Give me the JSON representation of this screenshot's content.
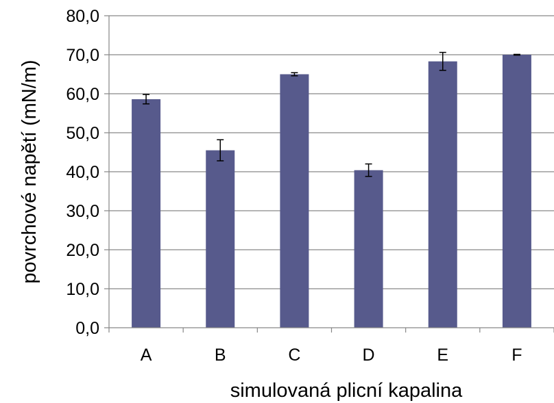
{
  "chart_data": {
    "type": "bar",
    "title": "",
    "xlabel": "simulovaná plicní kapalina",
    "ylabel": "povrchové napětí (mN/m)",
    "categories": [
      "A",
      "B",
      "C",
      "D",
      "E",
      "F"
    ],
    "values": [
      58.6,
      45.5,
      65.0,
      40.4,
      68.3,
      70.0
    ],
    "errors": [
      1.2,
      2.7,
      0.4,
      1.6,
      2.3,
      0.1
    ],
    "ylim": [
      0,
      80
    ],
    "yticks": [
      "0,0",
      "10,0",
      "20,0",
      "30,0",
      "40,0",
      "50,0",
      "60,0",
      "70,0",
      "80,0"
    ],
    "grid": true,
    "legend": "none",
    "bar_color": "#575a8c",
    "grid_color": "#868686"
  }
}
